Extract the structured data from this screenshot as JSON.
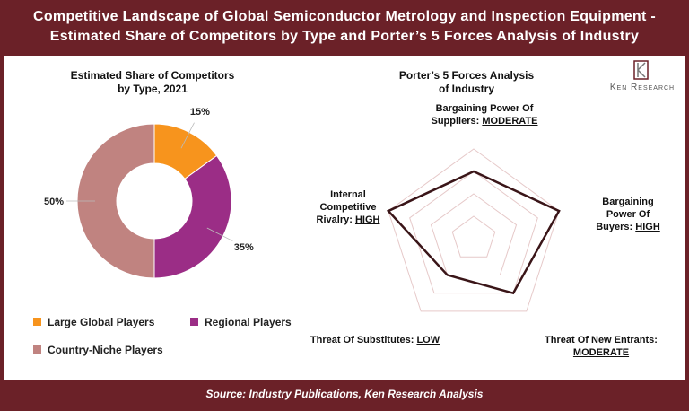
{
  "header": {
    "title": "Competitive Landscape of Global Semiconductor Metrology and Inspection Equipment - Estimated Share of Competitors by Type and Porter’s 5 Forces Analysis of Industry"
  },
  "logo": {
    "text": "Ken Research"
  },
  "chart_data": [
    {
      "type": "donut",
      "title": "Estimated Share of Competitors by Type, 2021",
      "categories": [
        "Large Global Players",
        "Regional Players",
        "Country-Niche Players"
      ],
      "values": [
        15,
        35,
        50
      ],
      "value_labels": [
        "15%",
        "35%",
        "50%"
      ],
      "colors": [
        "#f7941d",
        "#9b2d86",
        "#c08380"
      ]
    },
    {
      "type": "radar",
      "title": "Porter’s 5 Forces Analysis of Industry",
      "categories": [
        "Bargaining Power Of Suppliers:",
        "Bargaining Power Of Buyers:",
        "Threat Of New Entrants:",
        "Threat Of Substitutes:",
        "Internal Competitive Rivalry:"
      ],
      "values": [
        3,
        4,
        3,
        2,
        4
      ],
      "value_labels": [
        "MODERATE",
        "HIGH",
        "MODERATE",
        "LOW",
        "HIGH"
      ],
      "rlim": [
        0,
        4
      ],
      "rticks": [
        1,
        2,
        3,
        4
      ],
      "color": "#3a1518",
      "grid_color": "#e6c9c9"
    }
  ],
  "footer": {
    "source": "Source: Industry Publications, Ken Research Analysis"
  }
}
